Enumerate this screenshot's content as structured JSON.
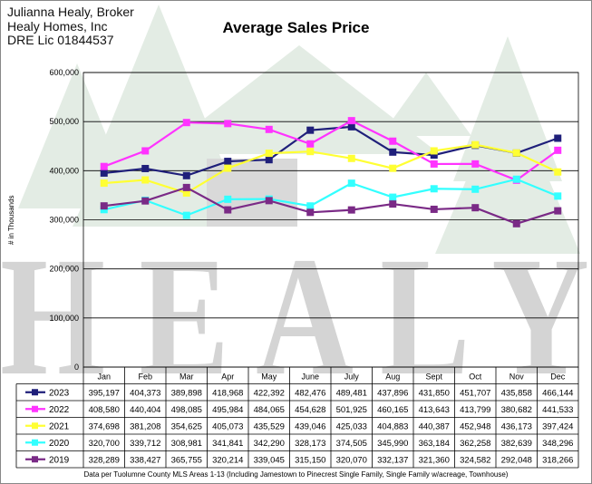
{
  "broker": {
    "name": "Julianna Healy, Broker",
    "company": "Healy Homes, Inc",
    "license": "DRE Lic 01844537"
  },
  "watermark": {
    "text": "HEALY"
  },
  "colors": {
    "2023": "#1f1f7a",
    "2022": "#ff33ff",
    "2021": "#ffff33",
    "2020": "#33ffff",
    "2019": "#7a2a86"
  },
  "chart_data": {
    "type": "line",
    "title": "Average Sales Price",
    "ylabel": "# in Thousands",
    "ylim": [
      0,
      600000
    ],
    "yticks": [
      "0",
      "100,000",
      "200,000",
      "300,000",
      "400,000",
      "500,000",
      "600,000"
    ],
    "grid": true,
    "categories": [
      "Jan",
      "Feb",
      "Mar",
      "Apr",
      "May",
      "June",
      "July",
      "Aug",
      "Sept",
      "Oct",
      "Nov",
      "Dec"
    ],
    "series": [
      {
        "name": "2023",
        "values": [
          395197,
          404373,
          389898,
          418968,
          422392,
          482476,
          489481,
          437896,
          431850,
          451707,
          435858,
          466144
        ],
        "labels": [
          "395,197",
          "404,373",
          "389,898",
          "418,968",
          "422,392",
          "482,476",
          "489,481",
          "437,896",
          "431,850",
          "451,707",
          "435,858",
          "466,144"
        ]
      },
      {
        "name": "2022",
        "values": [
          408580,
          440404,
          498085,
          495984,
          484065,
          454628,
          501925,
          460165,
          413643,
          413799,
          380682,
          441533
        ],
        "labels": [
          "408,580",
          "440,404",
          "498,085",
          "495,984",
          "484,065",
          "454,628",
          "501,925",
          "460,165",
          "413,643",
          "413,799",
          "380,682",
          "441,533"
        ]
      },
      {
        "name": "2021",
        "values": [
          374698,
          381208,
          354625,
          405073,
          435529,
          439046,
          425033,
          404883,
          440387,
          452948,
          436173,
          397424
        ],
        "labels": [
          "374,698",
          "381,208",
          "354,625",
          "405,073",
          "435,529",
          "439,046",
          "425,033",
          "404,883",
          "440,387",
          "452,948",
          "436,173",
          "397,424"
        ]
      },
      {
        "name": "2020",
        "values": [
          320700,
          339712,
          308981,
          341841,
          342290,
          328173,
          374505,
          345990,
          363184,
          362258,
          382639,
          348296
        ],
        "labels": [
          "320,700",
          "339,712",
          "308,981",
          "341,841",
          "342,290",
          "328,173",
          "374,505",
          "345,990",
          "363,184",
          "362,258",
          "382,639",
          "348,296"
        ]
      },
      {
        "name": "2019",
        "values": [
          328289,
          338427,
          365755,
          320214,
          339045,
          315150,
          320070,
          332137,
          321360,
          324582,
          292048,
          318266
        ],
        "labels": [
          "328,289",
          "338,427",
          "365,755",
          "320,214",
          "339,045",
          "315,150",
          "320,070",
          "332,137",
          "321,360",
          "324,582",
          "292,048",
          "318,266"
        ]
      }
    ],
    "footnote": "Data per Tuolumne County MLS Areas 1-13 (Including Jamestown to Pinecrest Single Family, Single Family w/acreage, Townhouse)"
  }
}
